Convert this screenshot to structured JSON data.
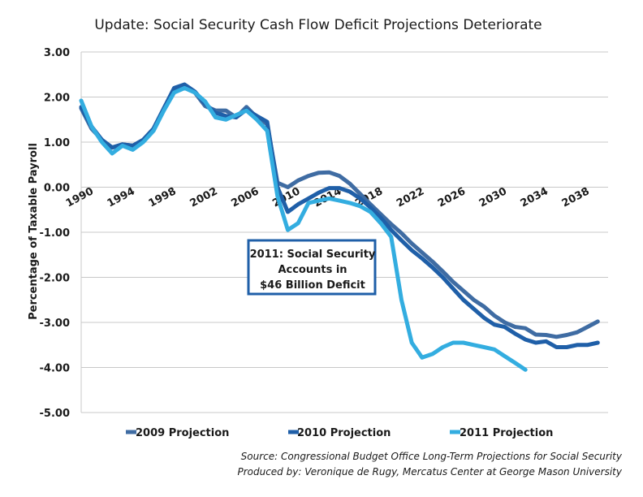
{
  "chart_data": {
    "type": "line",
    "title": "Update: Social Security Cash Flow Deficit Projections Deteriorate",
    "xlabel": "",
    "ylabel": "Percentage of Taxable Payroll",
    "xlim": [
      1990,
      2041
    ],
    "ylim": [
      -5,
      3
    ],
    "yticks": [
      3,
      2,
      1,
      0,
      -1,
      -2,
      -3,
      -4,
      -5
    ],
    "ytick_labels": [
      "3.00",
      "2.00",
      "1.00",
      "0.00",
      "-1.00",
      "-2.00",
      "-3.00",
      "-4.00",
      "-5.00"
    ],
    "xticks": [
      1990,
      1994,
      1998,
      2002,
      2006,
      2010,
      2014,
      2018,
      2022,
      2026,
      2030,
      2034,
      2038
    ],
    "xtick_labels": [
      "1990",
      "1994",
      "1998",
      "2002",
      "2006",
      "2010",
      "2014",
      "2018",
      "2022",
      "2026",
      "2030",
      "2034",
      "2038"
    ],
    "grid": true,
    "legend_position": "bottom",
    "series": [
      {
        "name": "2009 Projection",
        "color": "#3f6ca3",
        "x": [
          1990,
          1991,
          1992,
          1993,
          1994,
          1995,
          1996,
          1997,
          1998,
          1999,
          2000,
          2001,
          2002,
          2003,
          2004,
          2005,
          2006,
          2007,
          2008,
          2009,
          2010,
          2011,
          2012,
          2013,
          2014,
          2015,
          2016,
          2017,
          2018,
          2019,
          2020,
          2021,
          2022,
          2023,
          2024,
          2025,
          2026,
          2027,
          2028,
          2029,
          2030,
          2031,
          2032,
          2033,
          2034,
          2035,
          2036,
          2037,
          2038,
          2039,
          2040
        ],
        "values": [
          1.75,
          1.3,
          1.05,
          0.88,
          0.95,
          0.92,
          1.05,
          1.3,
          1.75,
          2.18,
          2.27,
          2.1,
          1.8,
          1.7,
          1.7,
          1.55,
          1.78,
          1.55,
          1.4,
          0.1,
          0.0,
          0.15,
          0.25,
          0.32,
          0.33,
          0.25,
          0.08,
          -0.15,
          -0.38,
          -0.6,
          -0.82,
          -1.02,
          -1.25,
          -1.45,
          -1.65,
          -1.87,
          -2.1,
          -2.3,
          -2.5,
          -2.65,
          -2.85,
          -3.0,
          -3.1,
          -3.13,
          -3.27,
          -3.28,
          -3.32,
          -3.28,
          -3.22,
          -3.1,
          -2.98
        ]
      },
      {
        "name": "2010 Projection",
        "color": "#1f5fa8",
        "x": [
          1990,
          1991,
          1992,
          1993,
          1994,
          1995,
          1996,
          1997,
          1998,
          1999,
          2000,
          2001,
          2002,
          2003,
          2004,
          2005,
          2006,
          2007,
          2008,
          2009,
          2010,
          2011,
          2012,
          2013,
          2014,
          2015,
          2016,
          2017,
          2018,
          2019,
          2020,
          2021,
          2022,
          2023,
          2024,
          2025,
          2026,
          2027,
          2028,
          2029,
          2030,
          2031,
          2032,
          2033,
          2034,
          2035,
          2036,
          2037,
          2038,
          2039,
          2040
        ],
        "values": [
          1.78,
          1.35,
          1.05,
          0.88,
          0.95,
          0.92,
          1.05,
          1.3,
          1.75,
          2.2,
          2.28,
          2.12,
          1.85,
          1.65,
          1.58,
          1.55,
          1.72,
          1.58,
          1.45,
          0.0,
          -0.55,
          -0.38,
          -0.25,
          -0.12,
          -0.02,
          -0.02,
          -0.1,
          -0.25,
          -0.45,
          -0.68,
          -0.95,
          -1.18,
          -1.4,
          -1.58,
          -1.78,
          -2.0,
          -2.25,
          -2.5,
          -2.7,
          -2.9,
          -3.05,
          -3.1,
          -3.25,
          -3.38,
          -3.45,
          -3.42,
          -3.55,
          -3.55,
          -3.5,
          -3.5,
          -3.45
        ]
      },
      {
        "name": "2011 Projection",
        "color": "#33ade0",
        "x": [
          1990,
          1991,
          1992,
          1993,
          1994,
          1995,
          1996,
          1997,
          1998,
          1999,
          2000,
          2001,
          2002,
          2003,
          2004,
          2005,
          2006,
          2007,
          2008,
          2009,
          2010,
          2011,
          2012,
          2013,
          2014,
          2015,
          2016,
          2017,
          2018,
          2019,
          2020,
          2021,
          2022,
          2023,
          2024,
          2025,
          2026,
          2027,
          2028,
          2029,
          2030,
          2031,
          2032,
          2033
        ],
        "values": [
          1.92,
          1.35,
          1.0,
          0.75,
          0.92,
          0.83,
          1.0,
          1.25,
          1.7,
          2.1,
          2.2,
          2.1,
          1.9,
          1.55,
          1.5,
          1.6,
          1.7,
          1.5,
          1.25,
          -0.2,
          -0.95,
          -0.8,
          -0.35,
          -0.3,
          -0.25,
          -0.3,
          -0.35,
          -0.42,
          -0.55,
          -0.8,
          -1.1,
          -2.5,
          -3.45,
          -3.78,
          -3.7,
          -3.55,
          -3.45,
          -3.45,
          -3.5,
          -3.55,
          -3.6,
          -3.75,
          -3.9,
          -4.05
        ]
      }
    ],
    "annotation": {
      "lines": [
        "2011: Social Security",
        "Accounts in",
        "$46 Billion Deficit"
      ],
      "border_color": "#1f5fa8"
    },
    "footer": [
      "Source: Congressional Budget Office Long-Term Projections for Social  Security",
      "Produced by: Veronique de Rugy, Mercatus Center at George Mason University"
    ]
  }
}
